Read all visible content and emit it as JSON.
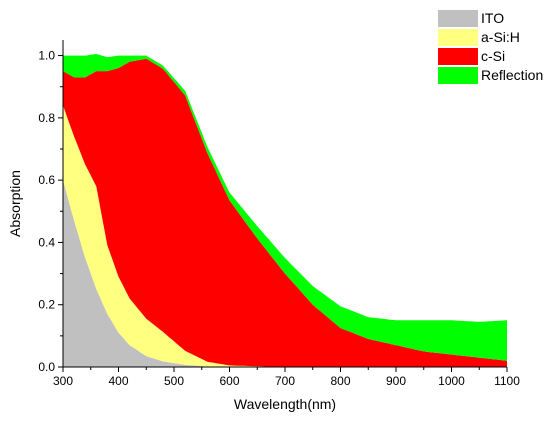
{
  "chart_data": {
    "type": "area",
    "stacked": true,
    "xlabel": "Wavelength(nm)",
    "ylabel": "Absorption",
    "xlim": [
      300,
      1100
    ],
    "ylim": [
      0,
      1.05
    ],
    "xticks": [
      300,
      400,
      500,
      600,
      700,
      800,
      900,
      1000,
      1100
    ],
    "xtick_labels": [
      "300",
      "400",
      "500",
      "600",
      "700",
      "800",
      "900",
      "1000",
      "1100"
    ],
    "yticks": [
      0.0,
      0.2,
      0.4,
      0.6,
      0.8,
      1.0
    ],
    "ytick_labels": [
      "0.0",
      "0.2",
      "0.4",
      "0.6",
      "0.8",
      "1.0"
    ],
    "grid": false,
    "legend_position": "top-right",
    "series": [
      {
        "name": "ITO",
        "color": "#c0c0c0",
        "x": [
          300,
          320,
          340,
          360,
          380,
          400,
          420,
          450,
          480,
          520,
          560,
          600,
          700,
          800,
          900,
          1000,
          1100
        ],
        "values": [
          0.6,
          0.47,
          0.35,
          0.25,
          0.17,
          0.11,
          0.07,
          0.035,
          0.018,
          0.007,
          0.002,
          0,
          0,
          0,
          0,
          0,
          0
        ]
      },
      {
        "name": "a-Si:H",
        "color": "#ffff80",
        "x": [
          300,
          320,
          340,
          360,
          380,
          400,
          420,
          450,
          480,
          520,
          560,
          600,
          700,
          800,
          900,
          1000,
          1100
        ],
        "values": [
          0.24,
          0.27,
          0.3,
          0.33,
          0.22,
          0.18,
          0.15,
          0.12,
          0.095,
          0.045,
          0.015,
          0.005,
          0,
          0,
          0,
          0,
          0
        ]
      },
      {
        "name": "c-Si",
        "color": "#ff0000",
        "x": [
          300,
          320,
          340,
          360,
          380,
          400,
          420,
          450,
          480,
          520,
          560,
          600,
          650,
          700,
          750,
          800,
          850,
          900,
          950,
          1000,
          1050,
          1100
        ],
        "values": [
          0.11,
          0.19,
          0.28,
          0.37,
          0.56,
          0.67,
          0.76,
          0.835,
          0.845,
          0.82,
          0.67,
          0.53,
          0.41,
          0.3,
          0.2,
          0.125,
          0.09,
          0.07,
          0.05,
          0.04,
          0.03,
          0.02
        ]
      },
      {
        "name": "Reflection",
        "color": "#00ff00",
        "x": [
          300,
          320,
          340,
          360,
          380,
          400,
          420,
          450,
          480,
          520,
          560,
          600,
          650,
          700,
          750,
          800,
          850,
          900,
          950,
          1000,
          1050,
          1100
        ],
        "values": [
          0.05,
          0.07,
          0.07,
          0.055,
          0.045,
          0.04,
          0.02,
          0.01,
          0.01,
          0.015,
          0.02,
          0.025,
          0.04,
          0.05,
          0.06,
          0.07,
          0.07,
          0.08,
          0.1,
          0.11,
          0.115,
          0.13
        ]
      }
    ]
  }
}
